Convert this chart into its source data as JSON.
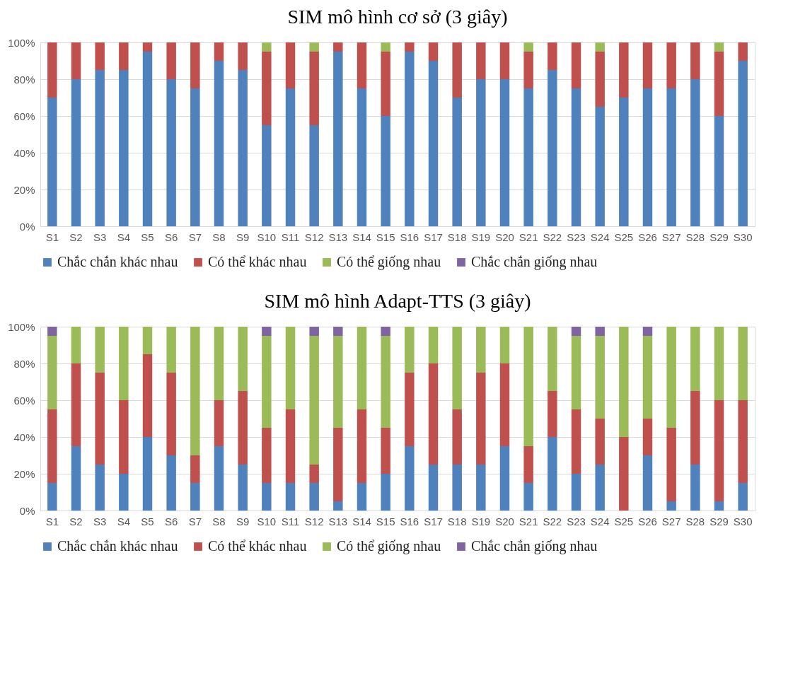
{
  "chart_data": [
    {
      "type": "bar",
      "title": "SIM mô hình cơ sở (3 giây)",
      "stacked": true,
      "legend": "bottom",
      "grid": "y",
      "categories": [
        "S1",
        "S2",
        "S3",
        "S4",
        "S5",
        "S6",
        "S7",
        "S8",
        "S9",
        "S10",
        "S11",
        "S12",
        "S13",
        "S14",
        "S15",
        "S16",
        "S17",
        "S18",
        "S19",
        "S20",
        "S21",
        "S22",
        "S23",
        "S24",
        "S25",
        "S26",
        "S27",
        "S28",
        "S29",
        "S30"
      ],
      "ylim": [
        0,
        100
      ],
      "yticks": [
        {
          "value": 0,
          "label": "0%"
        },
        {
          "value": 20,
          "label": "20%"
        },
        {
          "value": 40,
          "label": "40%"
        },
        {
          "value": 60,
          "label": "60%"
        },
        {
          "value": 80,
          "label": "80%"
        },
        {
          "value": 100,
          "label": "100%"
        }
      ],
      "series": [
        {
          "name": "Chắc chắn khác nhau",
          "color": "#4f81bd",
          "values": [
            70,
            80,
            85,
            85,
            95,
            80,
            75,
            90,
            85,
            55,
            75,
            55,
            95,
            75,
            60,
            95,
            90,
            70,
            80,
            80,
            75,
            85,
            75,
            65,
            70,
            75,
            75,
            80,
            60,
            90
          ]
        },
        {
          "name": "Có thể khác nhau",
          "color": "#c0504d",
          "values": [
            30,
            20,
            15,
            15,
            5,
            20,
            25,
            10,
            15,
            40,
            25,
            40,
            5,
            25,
            35,
            5,
            10,
            30,
            20,
            20,
            20,
            15,
            25,
            30,
            30,
            25,
            25,
            20,
            35,
            10
          ]
        },
        {
          "name": "Có thể giống nhau",
          "color": "#9bbb59",
          "values": [
            0,
            0,
            0,
            0,
            0,
            0,
            0,
            0,
            0,
            5,
            0,
            5,
            0,
            0,
            5,
            0,
            0,
            0,
            0,
            0,
            5,
            0,
            0,
            5,
            0,
            0,
            0,
            0,
            5,
            0
          ]
        },
        {
          "name": "Chắc chắn giống nhau",
          "color": "#8064a2",
          "values": [
            0,
            0,
            0,
            0,
            0,
            0,
            0,
            0,
            0,
            0,
            0,
            0,
            0,
            0,
            0,
            0,
            0,
            0,
            0,
            0,
            0,
            0,
            0,
            0,
            0,
            0,
            0,
            0,
            0,
            0
          ]
        }
      ]
    },
    {
      "type": "bar",
      "title": "SIM mô hình Adapt-TTS (3 giây)",
      "stacked": true,
      "legend": "bottom",
      "grid": "y",
      "categories": [
        "S1",
        "S2",
        "S3",
        "S4",
        "S5",
        "S6",
        "S7",
        "S8",
        "S9",
        "S10",
        "S11",
        "S12",
        "S13",
        "S14",
        "S15",
        "S16",
        "S17",
        "S18",
        "S19",
        "S20",
        "S21",
        "S22",
        "S23",
        "S24",
        "S25",
        "S26",
        "S27",
        "S28",
        "S29",
        "S30"
      ],
      "ylim": [
        0,
        100
      ],
      "yticks": [
        {
          "value": 0,
          "label": "0%"
        },
        {
          "value": 20,
          "label": "20%"
        },
        {
          "value": 40,
          "label": "40%"
        },
        {
          "value": 60,
          "label": "60%"
        },
        {
          "value": 80,
          "label": "80%"
        },
        {
          "value": 100,
          "label": "100%"
        }
      ],
      "series": [
        {
          "name": "Chắc chắn khác nhau",
          "color": "#4f81bd",
          "values": [
            15,
            35,
            25,
            20,
            40,
            30,
            15,
            35,
            25,
            15,
            15,
            15,
            5,
            15,
            20,
            35,
            25,
            25,
            25,
            35,
            15,
            40,
            20,
            25,
            0,
            30,
            5,
            25,
            5,
            15
          ]
        },
        {
          "name": "Có thể khác nhau",
          "color": "#c0504d",
          "values": [
            40,
            45,
            50,
            40,
            45,
            45,
            15,
            25,
            40,
            30,
            40,
            10,
            40,
            40,
            25,
            40,
            55,
            30,
            50,
            45,
            20,
            25,
            35,
            25,
            40,
            20,
            40,
            40,
            55,
            45
          ]
        },
        {
          "name": "Có thể giống nhau",
          "color": "#9bbb59",
          "values": [
            40,
            20,
            25,
            40,
            15,
            25,
            70,
            40,
            35,
            50,
            45,
            70,
            50,
            45,
            50,
            25,
            20,
            45,
            25,
            20,
            65,
            35,
            40,
            45,
            60,
            45,
            55,
            35,
            40,
            40
          ]
        },
        {
          "name": "Chắc chắn giống nhau",
          "color": "#8064a2",
          "values": [
            5,
            0,
            0,
            0,
            0,
            0,
            0,
            0,
            0,
            5,
            0,
            5,
            5,
            0,
            5,
            0,
            0,
            0,
            0,
            0,
            0,
            0,
            5,
            5,
            0,
            5,
            0,
            0,
            0,
            0
          ]
        }
      ]
    }
  ]
}
